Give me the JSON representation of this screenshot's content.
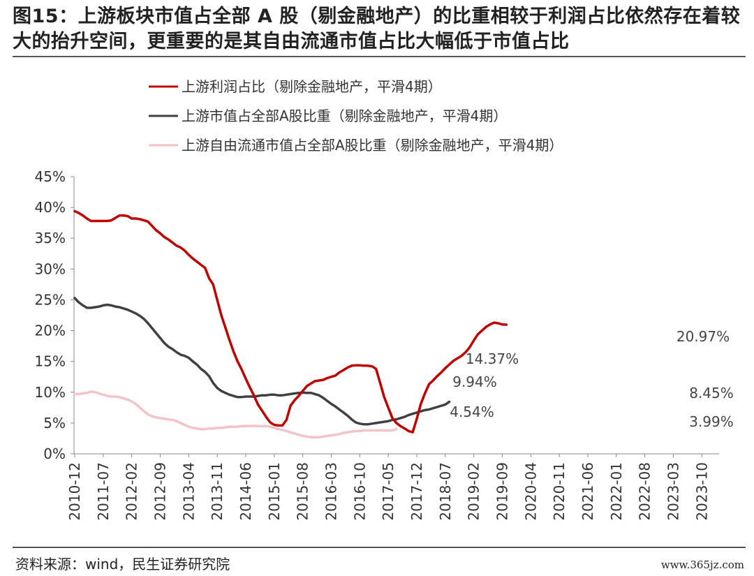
{
  "header": {
    "title": "图15：上游板块市值占全部 A 股（剔金融地产）的比重相较于利润占比依然存在着较大的抬升空间，更重要的是其自由流通市值占比大幅低于市值占比"
  },
  "footer": {
    "source": "资料来源：wind，民生证券研究院",
    "watermark": "www.365jz.com"
  },
  "chart_data": {
    "type": "line",
    "title": "",
    "xlabel": "",
    "ylabel": "",
    "ylim": [
      0,
      45
    ],
    "yticks": [
      "0%",
      "5%",
      "10%",
      "15%",
      "20%",
      "25%",
      "30%",
      "35%",
      "40%",
      "45%"
    ],
    "xticks": [
      "2010-12",
      "2011-07",
      "2012-02",
      "2012-09",
      "2013-04",
      "2013-11",
      "2014-06",
      "2015-01",
      "2015-08",
      "2016-03",
      "2016-10",
      "2017-05",
      "2017-12",
      "2018-07",
      "2019-02",
      "2019-09",
      "2020-04",
      "2020-11",
      "2021-06",
      "2022-01",
      "2022-08",
      "2023-03",
      "2023-10"
    ],
    "grid": false,
    "legend_position": "top-left",
    "x_start": "2010-12",
    "x_step_months": 1,
    "series": [
      {
        "name": "上游利润占比（剔除金融地产，平滑4期）",
        "color": "#c00000",
        "values": [
          39.4,
          39.1,
          38.7,
          38.2,
          37.8,
          37.8,
          37.8,
          37.8,
          37.8,
          37.9,
          38.3,
          38.7,
          38.7,
          38.6,
          38.2,
          38.2,
          38.1,
          37.9,
          37.7,
          37.0,
          36.3,
          35.8,
          35.2,
          34.8,
          34.3,
          33.8,
          33.5,
          33.0,
          32.3,
          31.7,
          31.2,
          30.7,
          30.2,
          28.5,
          27.5,
          25.0,
          22.5,
          20.5,
          18.5,
          16.6,
          15.0,
          13.7,
          12.2,
          10.8,
          9.5,
          8.0,
          7.0,
          6.0,
          5.1,
          4.7,
          4.6,
          4.6,
          5.5,
          7.8,
          8.7,
          9.4,
          10.2,
          11.0,
          11.4,
          11.8,
          11.9,
          12.0,
          12.3,
          12.5,
          12.7,
          13.2,
          13.6,
          14.0,
          14.3,
          14.37,
          14.37,
          14.3,
          14.3,
          14.2,
          13.8,
          11.5,
          9.2,
          7.5,
          5.8,
          5.0,
          4.5,
          4.1,
          3.7,
          3.5,
          5.7,
          8.1,
          9.8,
          11.3,
          11.9,
          12.6,
          13.2,
          13.9,
          14.5,
          15.1,
          15.5,
          15.9,
          16.5,
          17.3,
          18.4,
          19.4,
          20.0,
          20.6,
          21.0,
          21.3,
          21.2,
          21.0,
          20.97
        ]
      },
      {
        "name": "上游市值占全部A股比重（剔除金融地产，平滑4期）",
        "color": "#404040",
        "values": [
          25.3,
          24.6,
          24.1,
          23.7,
          23.7,
          23.8,
          23.9,
          24.1,
          24.2,
          24.1,
          23.9,
          23.8,
          23.6,
          23.4,
          23.1,
          22.8,
          22.4,
          21.9,
          21.2,
          20.4,
          19.6,
          18.8,
          18.0,
          17.4,
          17.0,
          16.5,
          16.1,
          15.9,
          15.6,
          15.0,
          14.5,
          13.8,
          13.3,
          12.6,
          11.5,
          10.7,
          10.2,
          9.9,
          9.6,
          9.4,
          9.2,
          9.2,
          9.3,
          9.3,
          9.3,
          9.4,
          9.5,
          9.5,
          9.6,
          9.6,
          9.5,
          9.5,
          9.6,
          9.7,
          9.8,
          9.9,
          9.94,
          9.9,
          9.9,
          9.7,
          9.5,
          9.1,
          8.6,
          8.1,
          7.7,
          7.2,
          6.7,
          6.2,
          5.6,
          5.1,
          4.9,
          4.8,
          4.8,
          4.9,
          5.0,
          5.1,
          5.2,
          5.3,
          5.5,
          5.6,
          5.8,
          6.0,
          6.3,
          6.5,
          6.7,
          6.9,
          7.1,
          7.2,
          7.4,
          7.6,
          7.8,
          8.0,
          8.45
        ]
      },
      {
        "name": "上游自由流通市值占全部A股比重（剔除金融地产，平滑4期）",
        "color": "#f2c4c8",
        "values": [
          9.7,
          9.7,
          9.8,
          9.9,
          10.1,
          10.0,
          9.8,
          9.6,
          9.4,
          9.3,
          9.3,
          9.2,
          9.0,
          8.8,
          8.5,
          8.1,
          7.5,
          6.9,
          6.4,
          6.1,
          5.9,
          5.8,
          5.7,
          5.6,
          5.5,
          5.3,
          5.0,
          4.7,
          4.4,
          4.2,
          4.1,
          4.0,
          4.0,
          4.1,
          4.1,
          4.2,
          4.2,
          4.3,
          4.4,
          4.4,
          4.4,
          4.5,
          4.5,
          4.5,
          4.54,
          4.5,
          4.5,
          4.5,
          4.4,
          4.2,
          4.0,
          3.9,
          3.7,
          3.5,
          3.3,
          3.1,
          2.9,
          2.8,
          2.7,
          2.7,
          2.7,
          2.8,
          2.9,
          3.0,
          3.1,
          3.2,
          3.4,
          3.5,
          3.6,
          3.7,
          3.7,
          3.8,
          3.8,
          3.8,
          3.8,
          3.8,
          3.8,
          3.8,
          3.8,
          3.99
        ]
      }
    ],
    "annotations": [
      {
        "series": 0,
        "label": "14.37%"
      },
      {
        "series": 0,
        "label": "20.97%"
      },
      {
        "series": 1,
        "label": "9.94%"
      },
      {
        "series": 1,
        "label": "8.45%"
      },
      {
        "series": 2,
        "label": "4.54%"
      },
      {
        "series": 2,
        "label": "3.99%"
      }
    ]
  }
}
